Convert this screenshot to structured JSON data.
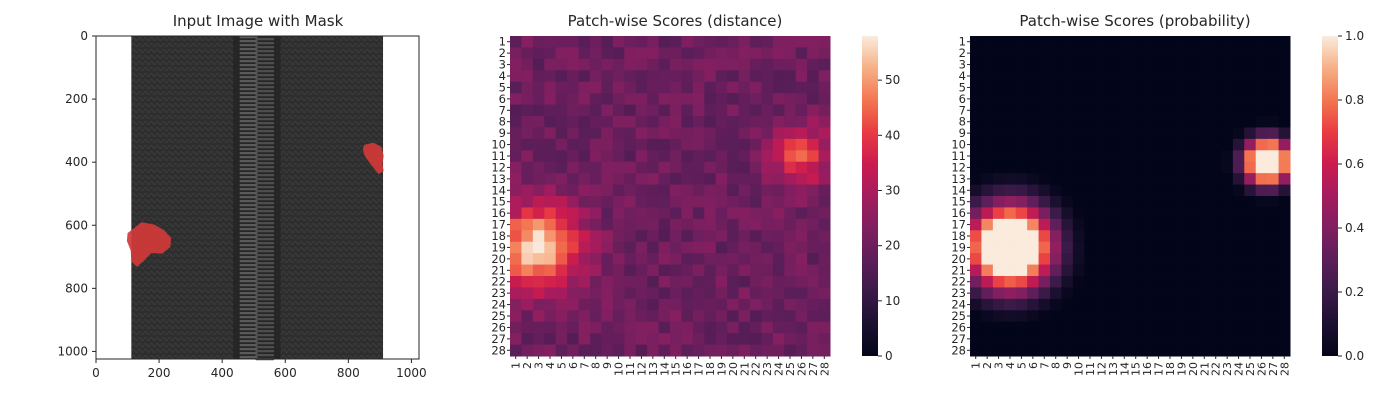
{
  "chart_data": [
    {
      "type": "image",
      "title": "Input Image with Mask",
      "xlim": [
        0,
        1024
      ],
      "ylim": [
        1024,
        0
      ],
      "xticks": [
        0,
        200,
        400,
        600,
        800,
        1000
      ],
      "yticks": [
        0,
        200,
        400,
        600,
        800,
        1000
      ],
      "image_description_colors": {
        "fabric": "#2f2f2f",
        "zipper_teeth": "#4a4a4a",
        "mask": "#d23a3a"
      },
      "mask_regions": [
        {
          "label": "mask-left",
          "cx": 175,
          "cy": 660
        },
        {
          "label": "mask-right",
          "cx": 880,
          "cy": 385
        }
      ]
    },
    {
      "type": "heatmap",
      "title": "Patch-wise Scores (distance)",
      "rows": [
        "1",
        "2",
        "3",
        "4",
        "5",
        "6",
        "7",
        "8",
        "9",
        "10",
        "11",
        "12",
        "13",
        "14",
        "15",
        "16",
        "17",
        "18",
        "19",
        "20",
        "21",
        "22",
        "23",
        "24",
        "25",
        "26",
        "27",
        "28"
      ],
      "cols": [
        "1",
        "2",
        "3",
        "4",
        "5",
        "6",
        "7",
        "8",
        "9",
        "10",
        "11",
        "12",
        "13",
        "14",
        "15",
        "16",
        "17",
        "18",
        "19",
        "20",
        "21",
        "22",
        "23",
        "24",
        "25",
        "26",
        "27",
        "28"
      ],
      "vmin": 0,
      "vmax": 58,
      "colorbar_ticks": [
        0,
        10,
        20,
        30,
        40,
        50
      ],
      "colormap": "rocket",
      "base_value": 20,
      "hotspots": [
        {
          "row": 19,
          "col": 3,
          "peak": 57,
          "spread": 2.6
        },
        {
          "row": 11,
          "col": 26,
          "peak": 42,
          "spread": 1.8
        }
      ]
    },
    {
      "type": "heatmap",
      "title": "Patch-wise Scores (probability)",
      "rows": [
        "1",
        "2",
        "3",
        "4",
        "5",
        "6",
        "7",
        "8",
        "9",
        "10",
        "11",
        "12",
        "13",
        "14",
        "15",
        "16",
        "17",
        "18",
        "19",
        "20",
        "21",
        "22",
        "23",
        "24",
        "25",
        "26",
        "27",
        "28"
      ],
      "cols": [
        "1",
        "2",
        "3",
        "4",
        "5",
        "6",
        "7",
        "8",
        "9",
        "10",
        "11",
        "12",
        "13",
        "14",
        "15",
        "16",
        "17",
        "18",
        "19",
        "20",
        "21",
        "22",
        "23",
        "24",
        "25",
        "26",
        "27",
        "28"
      ],
      "vmin": 0.0,
      "vmax": 1.0,
      "colorbar_ticks": [
        "0.0",
        "0.2",
        "0.4",
        "0.6",
        "0.8",
        "1.0"
      ],
      "colormap": "rocket",
      "base_value": 0.0,
      "hotspots": [
        {
          "row": 19,
          "col": 4,
          "peak": 1.0,
          "spread": 2.6
        },
        {
          "row": 11.5,
          "col": 26.5,
          "peak": 1.0,
          "spread": 1.4
        }
      ]
    }
  ]
}
